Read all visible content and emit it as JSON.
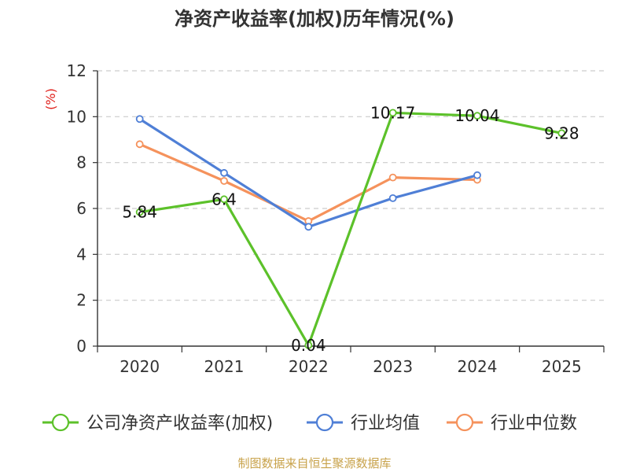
{
  "chart_data": {
    "type": "line",
    "title": "净资产收益率(加权)历年情况(%)",
    "ylabel": "(%)",
    "xlabel": "",
    "ylim": [
      0,
      12
    ],
    "yticks": [
      0,
      2,
      4,
      6,
      8,
      10,
      12
    ],
    "grid": true,
    "legend_position": "bottom",
    "categories": [
      "2020",
      "2021",
      "2022",
      "2023",
      "2024",
      "2025"
    ],
    "series": [
      {
        "name": "公司净资产收益率(加权)",
        "color": "#5cc12a",
        "values": [
          5.84,
          6.4,
          0.04,
          10.17,
          10.04,
          9.28
        ],
        "labels": [
          "5.84",
          "6.4",
          "0.04",
          "10.17",
          "10.04",
          "9.28"
        ],
        "show_labels": true
      },
      {
        "name": "行业均值",
        "color": "#4f7fd6",
        "values": [
          9.9,
          7.55,
          5.2,
          6.45,
          7.45,
          null
        ],
        "show_labels": false
      },
      {
        "name": "行业中位数",
        "color": "#f5925c",
        "values": [
          8.8,
          7.2,
          5.45,
          7.35,
          7.25,
          null
        ],
        "show_labels": false
      }
    ],
    "source": "制图数据来自恒生聚源数据库"
  }
}
